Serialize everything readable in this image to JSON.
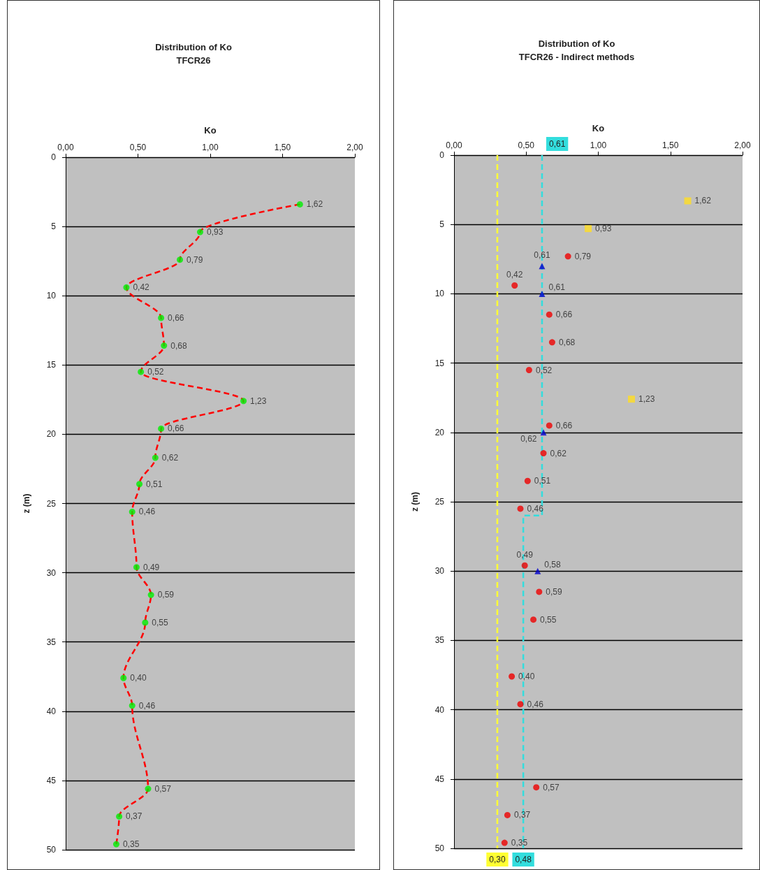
{
  "chart_data": [
    {
      "type": "scatter",
      "orientation": "horizontal",
      "title": "Distribution of Ko",
      "subtitle": "TFCR26",
      "xlabel": "Ko",
      "ylabel": "z (m)",
      "xlim": [
        0,
        2
      ],
      "xticks": [
        {
          "value": 0,
          "label": "0,00"
        },
        {
          "value": 0.5,
          "label": "0,50"
        },
        {
          "value": 1,
          "label": "1,00"
        },
        {
          "value": 1.5,
          "label": "1,50"
        },
        {
          "value": 2,
          "label": "2,00"
        }
      ],
      "ylim": [
        50,
        0
      ],
      "yticks": [
        0,
        5,
        10,
        15,
        20,
        25,
        30,
        35,
        40,
        45,
        50
      ],
      "grid": "y",
      "series": [
        {
          "type": "line",
          "color": "#ff0000",
          "marker": "none",
          "line_style": "dashed",
          "values": [
            1.62,
            0.93,
            0.79,
            0.42,
            0.66,
            0.68,
            0.52,
            1.23,
            0.66,
            0.62,
            0.51,
            0.46,
            0.49,
            0.59,
            0.55,
            0.4,
            0.46,
            0.57,
            0.37,
            0.35
          ],
          "x": [
            3.4,
            5.4,
            7.4,
            9.4,
            11.6,
            13.6,
            15.5,
            17.6,
            19.6,
            21.7,
            23.6,
            25.6,
            29.6,
            31.6,
            33.6,
            37.6,
            39.6,
            45.6,
            47.6,
            49.6
          ]
        },
        {
          "color": "#00ee00",
          "marker": "circle",
          "values": [
            1.62,
            0.93,
            0.79,
            0.42,
            0.66,
            0.68,
            0.52,
            1.23,
            0.66,
            0.62,
            0.51,
            0.46,
            0.49,
            0.59,
            0.55,
            0.4,
            0.46,
            0.57,
            0.37,
            0.35
          ],
          "x": [
            3.4,
            5.4,
            7.4,
            9.4,
            11.6,
            13.6,
            15.5,
            17.6,
            19.6,
            21.7,
            23.6,
            25.6,
            29.6,
            31.6,
            33.6,
            37.6,
            39.6,
            45.6,
            47.6,
            49.6
          ],
          "value_labels": [
            "1,62",
            "0,93",
            "0,79",
            "0,42",
            "0,66",
            "0,68",
            "0,52",
            "1,23",
            "0,66",
            "0,62",
            "0,51",
            "0,46",
            "0,49",
            "0,59",
            "0,55",
            "0,40",
            "0,46",
            "0,57",
            "0,37",
            "0,35"
          ]
        }
      ]
    },
    {
      "type": "scatter",
      "orientation": "horizontal",
      "title": "Distribution of Ko",
      "subtitle": "TFCR26 - Indirect methods",
      "xlabel": "Ko",
      "ylabel": "z (m)",
      "xlim": [
        0,
        2
      ],
      "xticks": [
        {
          "value": 0,
          "label": "0,00"
        },
        {
          "value": 0.5,
          "label": "0,50"
        },
        {
          "value": 1,
          "label": "1,00"
        },
        {
          "value": 1.5,
          "label": "1,50"
        },
        {
          "value": 2,
          "label": "2,00"
        }
      ],
      "ylim": [
        50,
        0
      ],
      "yticks": [
        0,
        5,
        10,
        15,
        20,
        25,
        30,
        35,
        40,
        45,
        50
      ],
      "grid": "y",
      "series": [
        {
          "type": "line",
          "color": "#ffff33",
          "marker": "none",
          "line_style": "dashed",
          "values": [
            0.3,
            0.3
          ],
          "x": [
            0,
            50
          ],
          "value_labels": [
            null,
            "0,30"
          ]
        },
        {
          "type": "line",
          "color": "#33dddd",
          "marker": "none",
          "line_style": "dashed",
          "values": [
            0.61,
            0.61,
            0.48,
            0.48
          ],
          "x": [
            0,
            26,
            26,
            50
          ],
          "value_labels": [
            "0,61",
            null,
            null,
            "0,48"
          ]
        },
        {
          "color": "#ee0000",
          "marker": "circle",
          "values": [
            0.79,
            0.42,
            0.66,
            0.68,
            0.52,
            0.66,
            0.62,
            0.51,
            0.46,
            0.49,
            0.59,
            0.55,
            0.4,
            0.46,
            0.57,
            0.37,
            0.35
          ],
          "x": [
            7.3,
            9.4,
            11.5,
            13.5,
            15.5,
            19.5,
            21.5,
            23.5,
            25.5,
            29.6,
            31.5,
            33.5,
            37.6,
            39.6,
            45.6,
            47.6,
            49.6
          ],
          "value_labels": [
            "0,79",
            "0,42",
            "0,66",
            "0,68",
            "0,52",
            "0,66",
            "0,62",
            "0,51",
            "0,46",
            "0,49",
            "0,59",
            "0,55",
            "0,40",
            "0,46",
            "0,57",
            "0,37",
            "0,35"
          ]
        },
        {
          "color": "#0000cc",
          "marker": "triangle",
          "values": [
            0.61,
            0.61,
            0.62,
            0.58
          ],
          "x": [
            8.0,
            10.0,
            20.0,
            30.0
          ],
          "value_labels": [
            "0,61",
            "0,61",
            "0,62",
            "0,58"
          ]
        },
        {
          "color": "#ffdd22",
          "marker": "square",
          "values": [
            1.62,
            0.93,
            1.23
          ],
          "x": [
            3.3,
            5.3,
            17.6
          ],
          "value_labels": [
            "1,62",
            "0,93",
            "1,23"
          ]
        }
      ]
    }
  ]
}
